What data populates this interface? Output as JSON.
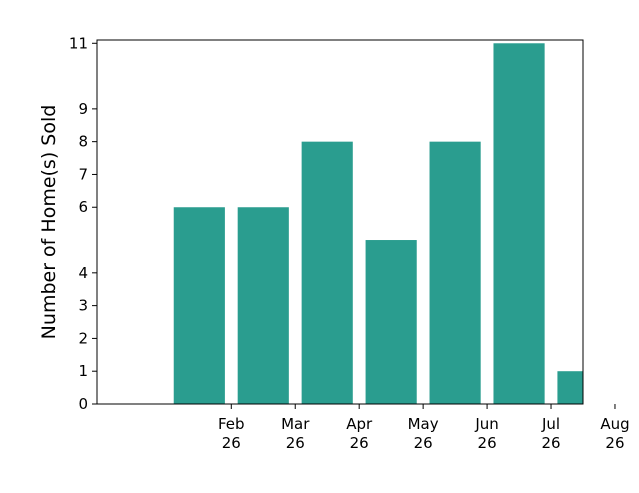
{
  "chart_data": {
    "type": "bar",
    "categories": [
      [
        "Feb",
        "26"
      ],
      [
        "Mar",
        "26"
      ],
      [
        "Apr",
        "26"
      ],
      [
        "May",
        "26"
      ],
      [
        "Jun",
        "26"
      ],
      [
        "Jul",
        "26"
      ],
      [
        "Aug",
        "26"
      ]
    ],
    "values": [
      6,
      6,
      8,
      5,
      8,
      11,
      1
    ],
    "ylabel": "Number of Home(s) Sold",
    "xlabel": "",
    "title": "",
    "yticks": [
      0,
      1,
      2,
      3,
      4,
      6,
      7,
      8,
      9,
      11
    ],
    "ylim": [
      0,
      11.1
    ],
    "bar_color": "#2a9d8f",
    "grid": false,
    "legend": "none"
  }
}
